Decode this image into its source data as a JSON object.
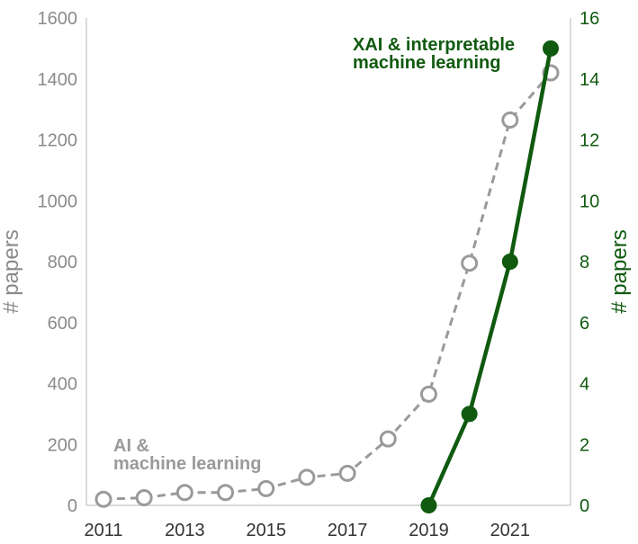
{
  "chart_data": {
    "type": "line",
    "x": [
      2011,
      2012,
      2013,
      2014,
      2015,
      2016,
      2017,
      2018,
      2019,
      2020,
      2021,
      2022
    ],
    "x_tick_labels": [
      "2011",
      "2013",
      "2015",
      "2017",
      "2019",
      "2021"
    ],
    "ylabel_left": "# papers",
    "ylabel_right": "# papers",
    "ylim_left": [
      0,
      1600
    ],
    "ylim_right": [
      0,
      16
    ],
    "y_tick_labels_left": [
      "0",
      "200",
      "400",
      "600",
      "800",
      "1000",
      "1200",
      "1400",
      "1600"
    ],
    "y_tick_labels_right": [
      "0",
      "2",
      "4",
      "6",
      "8",
      "10",
      "12",
      "14",
      "16"
    ],
    "grid": false,
    "series": [
      {
        "axis": "left",
        "style": "dashed, hollow markers",
        "color": "#9a9a9a",
        "x": [
          2011,
          2012,
          2013,
          2014,
          2015,
          2016,
          2017,
          2018,
          2019,
          2020,
          2021,
          2022
        ],
        "values": [
          20,
          25,
          42,
          42,
          55,
          92,
          105,
          218,
          365,
          795,
          1265,
          1420
        ]
      },
      {
        "axis": "right",
        "style": "solid, filled markers",
        "color": "#0f5a0f",
        "x": [
          2019,
          2020,
          2021,
          2022
        ],
        "values": [
          0,
          3,
          8,
          15
        ]
      }
    ],
    "annotations": [
      {
        "lines": [
          "AI &",
          "machine learning"
        ],
        "color": "#9a9a9a"
      },
      {
        "lines": [
          "XAI & interpretable",
          "machine learning"
        ],
        "color": "#0f5a0f"
      }
    ]
  }
}
